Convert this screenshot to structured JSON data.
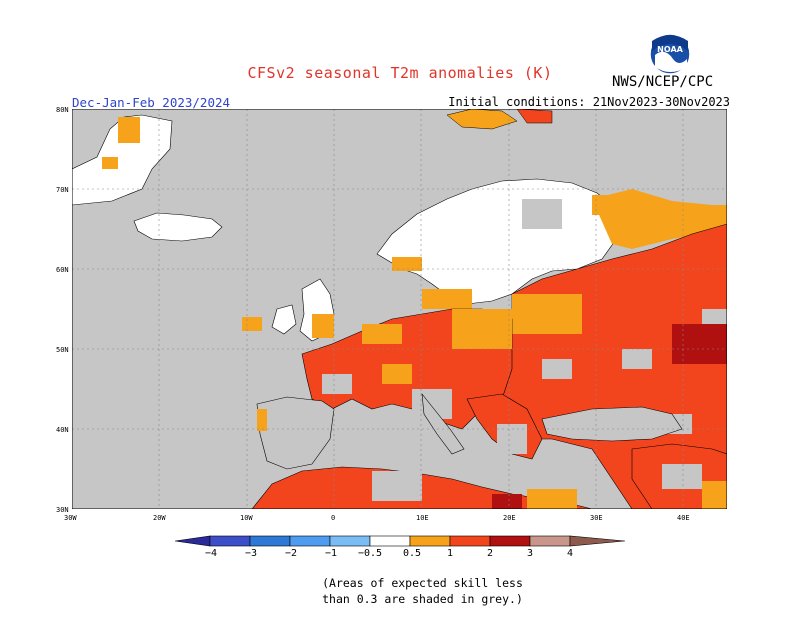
{
  "header": {
    "title": "CFSv2 seasonal T2m anomalies (K)",
    "season": "Dec-Jan-Feb 2023/2024",
    "initial_conditions": "Initial conditions: 21Nov2023-30Nov2023",
    "agency": "NWS/NCEP/CPC",
    "logo_text": "NOAA"
  },
  "map": {
    "lat_labels": [
      "80N",
      "70N",
      "60N",
      "50N",
      "40N",
      "30N"
    ],
    "lon_labels": [
      "30W",
      "20W",
      "10W",
      "0",
      "10E",
      "20E",
      "30E",
      "40E"
    ],
    "colors": {
      "ocean": "#c6c6c6",
      "land_neutral": "#ffffff",
      "cat_05_1": "#f7a21b",
      "cat_1_2": "#f2451e",
      "cat_2_3": "#b01010",
      "low_skill": "#c6c6c6"
    }
  },
  "colorbar": {
    "labels": [
      "−4",
      "−3",
      "−2",
      "−1",
      "−0.5",
      "0.5",
      "1",
      "2",
      "3",
      "4"
    ],
    "colors": [
      "#2a2a9a",
      "#3d4fc8",
      "#2e78d6",
      "#4d9cf0",
      "#7cbcf4",
      "#ffffff",
      "#f7a21b",
      "#f2451e",
      "#b01010",
      "#c8968a",
      "#8e5a4c"
    ]
  },
  "footnote": {
    "line1": "(Areas of expected skill less",
    "line2": "than 0.3 are shaded in grey.)"
  }
}
